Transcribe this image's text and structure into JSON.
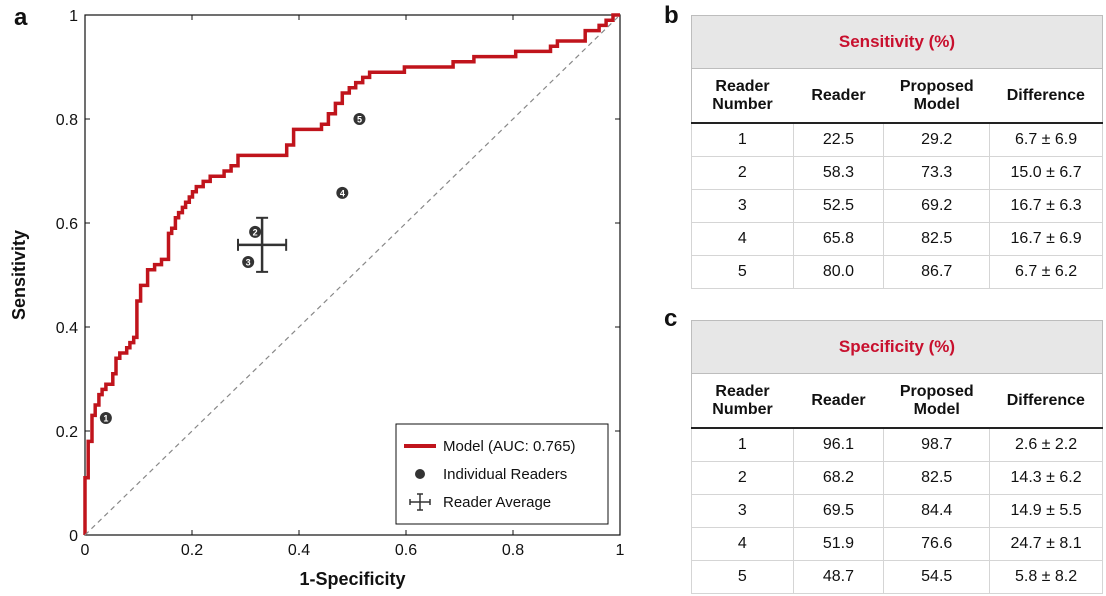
{
  "panels": {
    "a": "a",
    "b": "b",
    "c": "c"
  },
  "chart_data": {
    "type": "line",
    "xlabel": "1-Specificity",
    "ylabel": "Sensitivity",
    "xlim": [
      0,
      1
    ],
    "ylim": [
      0,
      1
    ],
    "x_ticks": [
      "0",
      "0.2",
      "0.4",
      "0.6",
      "0.8",
      "1"
    ],
    "y_ticks": [
      "0",
      "0.2",
      "0.4",
      "0.6",
      "0.8",
      "1"
    ],
    "grid": false,
    "legend_position": "bottom-right",
    "series": [
      {
        "name": "Model (AUC: 0.765)",
        "color": "#c0141c",
        "x": [
          0,
          0,
          0.006,
          0.006,
          0.013,
          0.013,
          0.019,
          0.019,
          0.026,
          0.026,
          0.032,
          0.032,
          0.039,
          0.039,
          0.052,
          0.052,
          0.058,
          0.058,
          0.065,
          0.065,
          0.078,
          0.078,
          0.084,
          0.084,
          0.091,
          0.091,
          0.097,
          0.097,
          0.104,
          0.104,
          0.117,
          0.117,
          0.13,
          0.13,
          0.143,
          0.143,
          0.156,
          0.156,
          0.162,
          0.162,
          0.169,
          0.169,
          0.175,
          0.175,
          0.182,
          0.182,
          0.188,
          0.188,
          0.195,
          0.195,
          0.201,
          0.201,
          0.208,
          0.208,
          0.221,
          0.221,
          0.234,
          0.234,
          0.26,
          0.26,
          0.273,
          0.273,
          0.286,
          0.286,
          0.299,
          0.299,
          0.312,
          0.312,
          0.377,
          0.377,
          0.39,
          0.39,
          0.416,
          0.416,
          0.442,
          0.442,
          0.455,
          0.455,
          0.468,
          0.468,
          0.481,
          0.481,
          0.494,
          0.494,
          0.506,
          0.506,
          0.519,
          0.519,
          0.532,
          0.532,
          0.545,
          0.545,
          0.597,
          0.597,
          0.662,
          0.662,
          0.688,
          0.688,
          0.727,
          0.727,
          0.779,
          0.779,
          0.805,
          0.805,
          0.87,
          0.87,
          0.883,
          0.883,
          0.935,
          0.935,
          0.961,
          0.961,
          0.974,
          0.974,
          0.987,
          0.987,
          1
        ],
        "y": [
          0,
          0.11,
          0.11,
          0.18,
          0.18,
          0.23,
          0.23,
          0.25,
          0.25,
          0.27,
          0.27,
          0.28,
          0.28,
          0.29,
          0.29,
          0.31,
          0.31,
          0.34,
          0.34,
          0.35,
          0.35,
          0.36,
          0.36,
          0.37,
          0.37,
          0.38,
          0.38,
          0.45,
          0.45,
          0.48,
          0.48,
          0.51,
          0.51,
          0.52,
          0.52,
          0.53,
          0.53,
          0.58,
          0.58,
          0.59,
          0.59,
          0.61,
          0.61,
          0.62,
          0.62,
          0.63,
          0.63,
          0.64,
          0.64,
          0.65,
          0.65,
          0.66,
          0.66,
          0.67,
          0.67,
          0.68,
          0.68,
          0.69,
          0.69,
          0.7,
          0.7,
          0.71,
          0.71,
          0.73,
          0.73,
          0.73,
          0.73,
          0.73,
          0.73,
          0.75,
          0.75,
          0.78,
          0.78,
          0.78,
          0.78,
          0.79,
          0.79,
          0.81,
          0.81,
          0.83,
          0.83,
          0.85,
          0.85,
          0.86,
          0.86,
          0.87,
          0.87,
          0.88,
          0.88,
          0.89,
          0.89,
          0.89,
          0.89,
          0.9,
          0.9,
          0.9,
          0.9,
          0.91,
          0.91,
          0.92,
          0.92,
          0.92,
          0.92,
          0.93,
          0.93,
          0.94,
          0.94,
          0.95,
          0.95,
          0.97,
          0.97,
          0.98,
          0.98,
          0.99,
          0.99,
          1.0,
          1.0
        ]
      },
      {
        "name": "Individual Readers",
        "type": "scatter",
        "color": "#333333",
        "x": [
          0.039,
          0.318,
          0.305,
          0.481,
          0.513
        ],
        "y": [
          0.225,
          0.583,
          0.525,
          0.658,
          0.8
        ],
        "labels": [
          "1",
          "2",
          "3",
          "4",
          "5"
        ]
      },
      {
        "name": "Reader Average",
        "type": "errorbar",
        "color": "#333333",
        "x": [
          0.331
        ],
        "y": [
          0.558
        ],
        "x_err": [
          0.045
        ],
        "y_err": [
          0.052
        ]
      },
      {
        "type": "reference-diagonal",
        "color": "#888888",
        "x": [
          0,
          1
        ],
        "y": [
          0,
          1
        ]
      }
    ]
  },
  "sensitivity_table": {
    "title": "Sensitivity (%)",
    "headers": [
      "Reader Number",
      "Reader",
      "Proposed Model",
      "Difference"
    ],
    "rows": [
      [
        "1",
        "22.5",
        "29.2",
        "6.7 ± 6.9"
      ],
      [
        "2",
        "58.3",
        "73.3",
        "15.0 ± 6.7"
      ],
      [
        "3",
        "52.5",
        "69.2",
        "16.7 ± 6.3"
      ],
      [
        "4",
        "65.8",
        "82.5",
        "16.7 ± 6.9"
      ],
      [
        "5",
        "80.0",
        "86.7",
        "6.7 ± 6.2"
      ]
    ]
  },
  "specificity_table": {
    "title": "Specificity (%)",
    "headers": [
      "Reader Number",
      "Reader",
      "Proposed Model",
      "Difference"
    ],
    "rows": [
      [
        "1",
        "96.1",
        "98.7",
        "2.6 ± 2.2"
      ],
      [
        "2",
        "68.2",
        "82.5",
        "14.3 ± 6.2"
      ],
      [
        "3",
        "69.5",
        "84.4",
        "14.9 ± 5.5"
      ],
      [
        "4",
        "51.9",
        "76.6",
        "24.7 ± 8.1"
      ],
      [
        "5",
        "48.7",
        "54.5",
        "5.8 ± 8.2"
      ]
    ]
  }
}
